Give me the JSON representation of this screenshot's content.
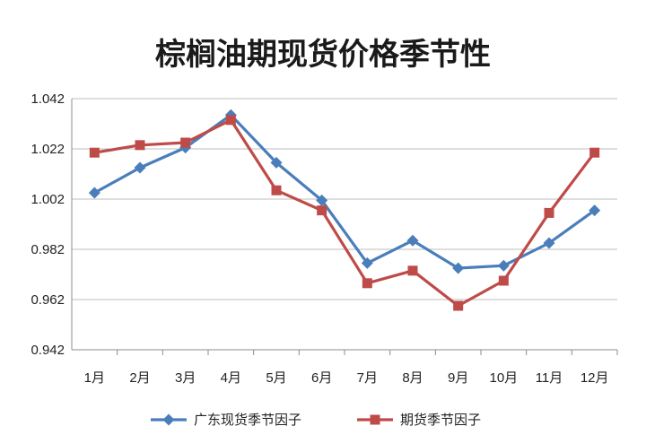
{
  "chart_data": {
    "type": "line",
    "title": "棕榈油期现货价格季节性",
    "categories": [
      "1月",
      "2月",
      "3月",
      "4月",
      "5月",
      "6月",
      "7月",
      "8月",
      "9月",
      "10月",
      "11月",
      "12月"
    ],
    "series": [
      {
        "name": "广东现货季节因子",
        "color": "#4a7ebb",
        "marker": "diamond",
        "values": [
          1.0045,
          1.0145,
          1.0225,
          1.0355,
          1.0165,
          1.0015,
          0.9765,
          0.9855,
          0.9745,
          0.9755,
          0.9845,
          0.9975
        ]
      },
      {
        "name": "期货季节因子",
        "color": "#be4b48",
        "marker": "square",
        "values": [
          1.0205,
          1.0235,
          1.0245,
          1.0335,
          1.0055,
          0.9975,
          0.9685,
          0.9735,
          0.9595,
          0.9695,
          0.9965,
          1.0205
        ]
      }
    ],
    "yticks": [
      "0.942",
      "0.962",
      "0.982",
      "1.002",
      "1.022",
      "1.042"
    ],
    "ylim": [
      0.942,
      1.042
    ],
    "grid": "horizontal",
    "legend": "bottom"
  }
}
